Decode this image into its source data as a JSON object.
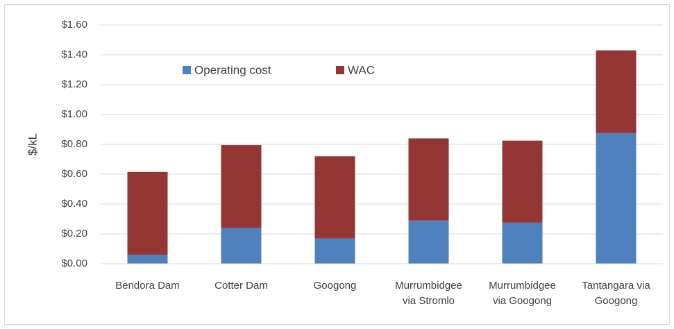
{
  "chart_data": {
    "type": "stacked_bar",
    "y_label": "$/kL",
    "categories": [
      "Bendora Dam",
      "Cotter Dam",
      "Googong",
      "Murrumbidgee via Stromlo",
      "Murrumbidgee via Googong",
      "Tantangara via Googong"
    ],
    "series": [
      {
        "name": "Operating cost",
        "color": "#4f81bd",
        "values": [
          0.06,
          0.24,
          0.17,
          0.29,
          0.275,
          0.875
        ]
      },
      {
        "name": "WAC",
        "color": "#943634",
        "values": [
          0.555,
          0.555,
          0.55,
          0.55,
          0.55,
          0.555
        ]
      }
    ],
    "ylim": [
      0,
      1.6
    ],
    "yticks": [
      {
        "value": 0,
        "label": "$0.00"
      },
      {
        "value": 0.2,
        "label": "$0.20"
      },
      {
        "value": 0.4,
        "label": "$0.40"
      },
      {
        "value": 0.6,
        "label": "$0.60"
      },
      {
        "value": 0.8,
        "label": "$0.80"
      },
      {
        "value": 1.0,
        "label": "$1.00"
      },
      {
        "value": 1.2,
        "label": "$1.20"
      },
      {
        "value": 1.4,
        "label": "$1.40"
      },
      {
        "value": 1.6,
        "label": "$1.60"
      }
    ],
    "grid": true
  }
}
